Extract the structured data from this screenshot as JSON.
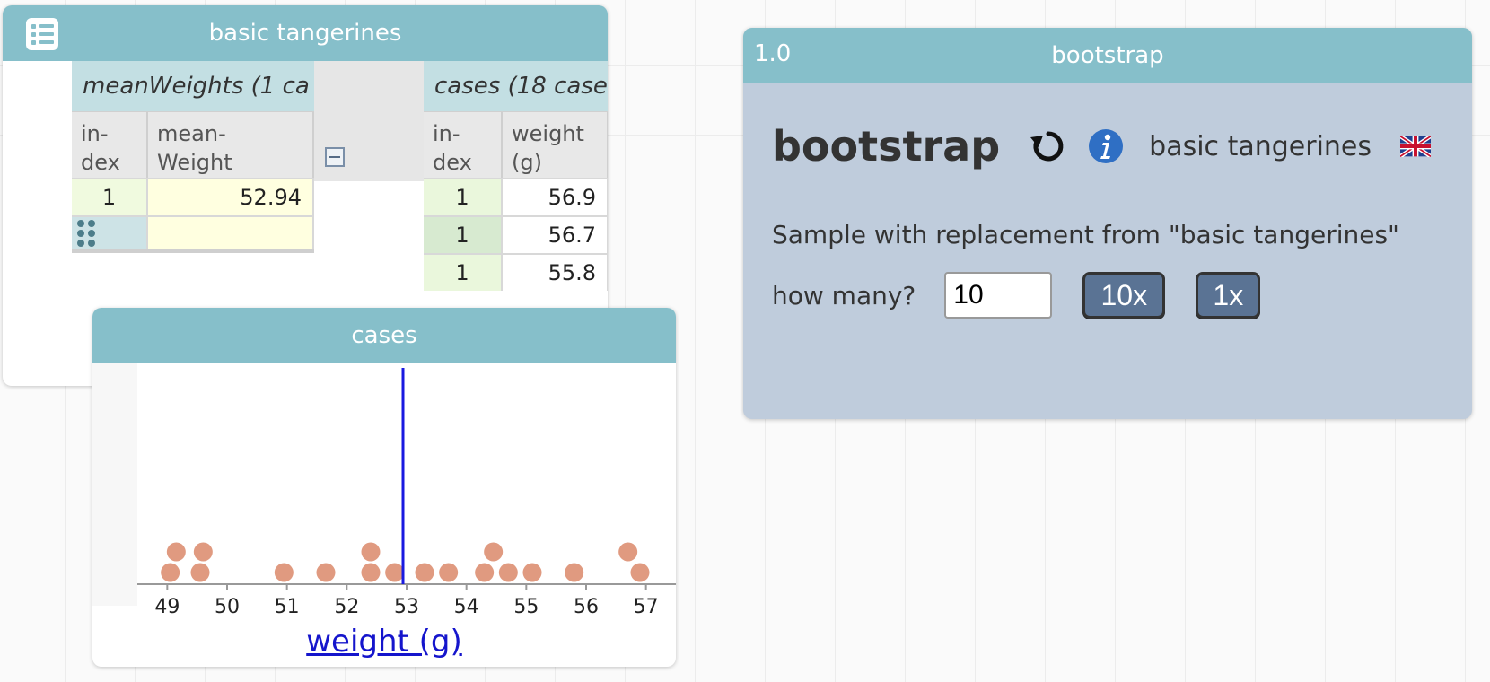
{
  "table_tile": {
    "title": "basic tangerines",
    "parent_collection": {
      "title": "meanWeights (1 ca",
      "headers": [
        "in-\ndex",
        "mean-\nWeight"
      ],
      "rows": [
        {
          "index": "1",
          "value": "52.94"
        }
      ]
    },
    "child_collection": {
      "title": "cases (18 case",
      "headers": [
        "in-\ndex",
        "weight\n(g)"
      ],
      "rows": [
        {
          "index": "1",
          "value": "56.9"
        },
        {
          "index": "1",
          "value": "56.7"
        },
        {
          "index": "1",
          "value": "55.8"
        }
      ]
    }
  },
  "graph_tile": {
    "title": "cases",
    "chart_data": {
      "type": "scatter",
      "title": "",
      "xlabel": "weight (g)",
      "ylabel": "",
      "xlim": [
        48.5,
        57.5
      ],
      "ticks": [
        49,
        50,
        51,
        52,
        53,
        54,
        55,
        56,
        57
      ],
      "grid": false,
      "point_color": "#e09a80",
      "mean_line": {
        "x": 52.94,
        "color": "#1a1ae0"
      },
      "points": [
        {
          "x": 49.05,
          "stack": 0
        },
        {
          "x": 49.15,
          "stack": 1
        },
        {
          "x": 49.55,
          "stack": 0
        },
        {
          "x": 49.6,
          "stack": 1
        },
        {
          "x": 50.95,
          "stack": 0
        },
        {
          "x": 51.65,
          "stack": 0
        },
        {
          "x": 52.4,
          "stack": 0
        },
        {
          "x": 52.4,
          "stack": 1
        },
        {
          "x": 52.8,
          "stack": 0
        },
        {
          "x": 53.3,
          "stack": 0
        },
        {
          "x": 53.7,
          "stack": 0
        },
        {
          "x": 54.3,
          "stack": 0
        },
        {
          "x": 54.45,
          "stack": 1
        },
        {
          "x": 54.7,
          "stack": 0
        },
        {
          "x": 55.1,
          "stack": 0
        },
        {
          "x": 55.8,
          "stack": 0
        },
        {
          "x": 56.7,
          "stack": 1
        },
        {
          "x": 56.9,
          "stack": 0
        }
      ]
    }
  },
  "plugin_tile": {
    "version": "1.0",
    "title": "bootstrap",
    "name": "bootstrap",
    "dataset": "basic tangerines",
    "instructions": "Sample with replacement from \"basic tangerines\"",
    "how_many_label": "how many?",
    "how_many_value": "10",
    "button_10x": "10x",
    "button_1x": "1x",
    "icons": [
      "refresh-icon",
      "info-icon",
      "uk-flag-icon"
    ]
  }
}
